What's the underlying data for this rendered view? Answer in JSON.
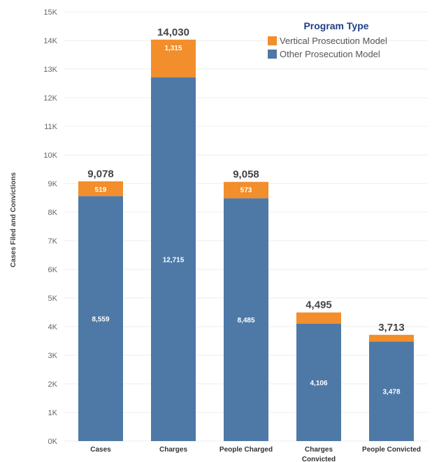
{
  "chart_data": {
    "type": "bar",
    "stacked": true,
    "ylabel": "Cases Filed and Convictions",
    "ylim": [
      0,
      15000
    ],
    "yticks": [
      "0K",
      "1K",
      "2K",
      "3K",
      "4K",
      "5K",
      "6K",
      "7K",
      "8K",
      "9K",
      "10K",
      "11K",
      "12K",
      "13K",
      "14K",
      "15K"
    ],
    "grid": true,
    "legend": {
      "title": "Program Type",
      "position": "top-right"
    },
    "categories": [
      "Cases",
      "Charges",
      "People Charged",
      [
        "Charges",
        "Convicted"
      ],
      "People Convicted"
    ],
    "series": [
      {
        "name": "Other Prosecution Model",
        "color": "#4e79a7",
        "values": [
          8559,
          12715,
          8485,
          4106,
          3478
        ],
        "labels": [
          "8,559",
          "12,715",
          "8,485",
          "4,106",
          "3,478"
        ]
      },
      {
        "name": "Vertical Prosecution Model",
        "color": "#f28e2b",
        "values": [
          519,
          1315,
          573,
          389,
          235
        ],
        "labels": [
          "519",
          "1,315",
          "573",
          "",
          ""
        ]
      }
    ],
    "totals": [
      "9,078",
      "14,030",
      "9,058",
      "4,495",
      "3,713"
    ]
  }
}
